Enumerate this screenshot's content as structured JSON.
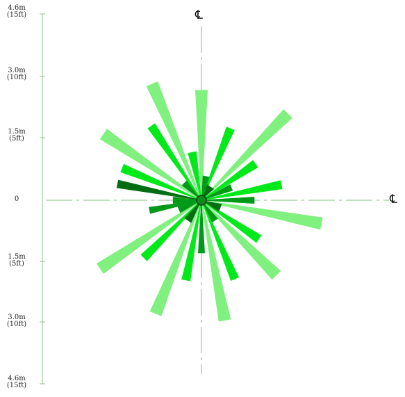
{
  "ruler": {
    "top": {
      "metric": "4.6m",
      "imperial": "(15ft)"
    },
    "up3": {
      "metric": "3.0m",
      "imperial": "(10ft)"
    },
    "up15": {
      "metric": "1.5m",
      "imperial": "(5ft)"
    },
    "zero": {
      "metric": "0"
    },
    "dn15": {
      "metric": "1.5m",
      "imperial": "(5ft)"
    },
    "dn3": {
      "metric": "3.0m",
      "imperial": "(10ft)"
    },
    "bottom": {
      "metric": "4.6m",
      "imperial": "(15ft)"
    }
  },
  "centerline": {
    "top_symbol": "℄",
    "right_symbol": "℄"
  },
  "colors": {
    "light": "#80f07f",
    "medium": "#00ea1a",
    "dark": "#009a18",
    "darkest": "#006e11",
    "axis": "#7fbf7f",
    "hub": "#0f8a1a"
  },
  "rays": [
    {
      "angle": 0,
      "shade": "light",
      "length_m": 2.7
    },
    {
      "angle": 11,
      "shade": "dark",
      "length_m": 0.6
    },
    {
      "angle": 22,
      "shade": "medium",
      "length_m": 1.9
    },
    {
      "angle": 34,
      "shade": "darkest",
      "length_m": 0.4
    },
    {
      "angle": 45,
      "shade": "light",
      "length_m": 3.0
    },
    {
      "angle": 56,
      "shade": "medium",
      "length_m": 1.6
    },
    {
      "angle": 67,
      "shade": "dark",
      "length_m": 0.8
    },
    {
      "angle": 79,
      "shade": "medium",
      "length_m": 2.0
    },
    {
      "angle": 90,
      "shade": "dark",
      "length_m": 1.3
    },
    {
      "angle": 101,
      "shade": "light",
      "length_m": 3.0
    },
    {
      "angle": 112,
      "shade": "darkest",
      "length_m": 0.5
    },
    {
      "angle": 124,
      "shade": "medium",
      "length_m": 1.7
    },
    {
      "angle": 135,
      "shade": "light",
      "length_m": 2.6
    },
    {
      "angle": 146,
      "shade": "dark",
      "length_m": 0.6
    },
    {
      "angle": 157,
      "shade": "medium",
      "length_m": 2.1
    },
    {
      "angle": 169,
      "shade": "light",
      "length_m": 3.0
    },
    {
      "angle": 180,
      "shade": "dark",
      "length_m": 1.3
    },
    {
      "angle": 191,
      "shade": "medium",
      "length_m": 2.0
    },
    {
      "angle": 202,
      "shade": "light",
      "length_m": 3.0
    },
    {
      "angle": 214,
      "shade": "darkest",
      "length_m": 0.6
    },
    {
      "angle": 225,
      "shade": "medium",
      "length_m": 2.0
    },
    {
      "angle": 236,
      "shade": "light",
      "length_m": 3.0
    },
    {
      "angle": 247,
      "shade": "dark",
      "length_m": 0.6
    },
    {
      "angle": 259,
      "shade": "dark",
      "length_m": 1.3
    },
    {
      "angle": 270,
      "shade": "dark",
      "length_m": 0.7
    },
    {
      "angle": 281,
      "shade": "darkest",
      "length_m": 2.1
    },
    {
      "angle": 292,
      "shade": "medium",
      "length_m": 2.1
    },
    {
      "angle": 304,
      "shade": "light",
      "length_m": 2.9
    },
    {
      "angle": 315,
      "shade": "dark",
      "length_m": 0.6
    },
    {
      "angle": 326,
      "shade": "medium",
      "length_m": 2.2
    },
    {
      "angle": 337,
      "shade": "light",
      "length_m": 3.1
    },
    {
      "angle": 349,
      "shade": "medium",
      "length_m": 1.2
    }
  ]
}
